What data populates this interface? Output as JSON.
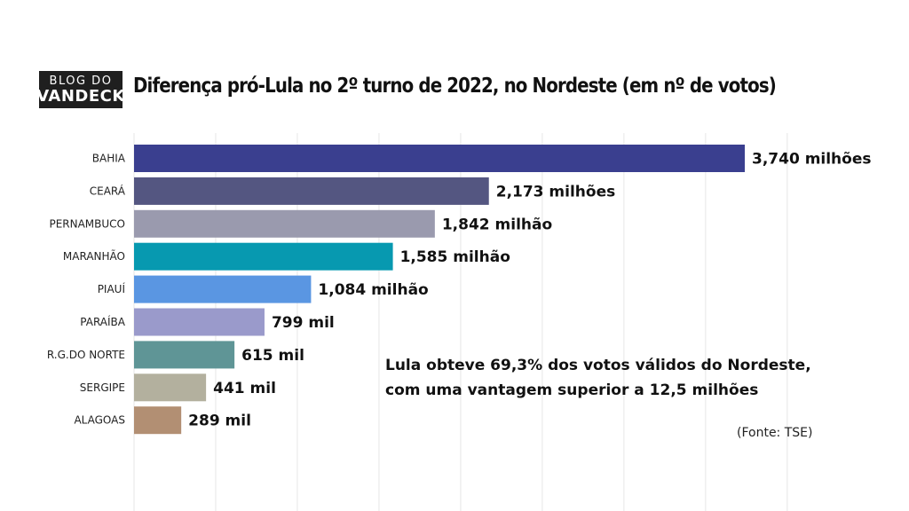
{
  "logo": {
    "line1": "BLOG DO",
    "line2": "VANDECK"
  },
  "chart_data": {
    "type": "bar",
    "orientation": "horizontal",
    "title": "Diferença pró-Lula no 2º turno de 2022, no Nordeste (em nº de votos)",
    "categories": [
      "BAHIA",
      "CEARÁ",
      "PERNAMBUCO",
      "MARANHÃO",
      "PIAUÍ",
      "PARAÍBA",
      "R.G.DO NORTE",
      "SERGIPE",
      "ALAGOAS"
    ],
    "values": [
      3740000,
      2173000,
      1842000,
      1585000,
      1084000,
      799000,
      615000,
      441000,
      289000
    ],
    "data_labels": [
      "3,740 milhões",
      "2,173 milhões",
      "1,842 milhão",
      "1,585 milhão",
      "1,084 milhão",
      "799 mil",
      "615 mil",
      "441 mil",
      "289 mil"
    ],
    "colors": [
      "#3a3f8f",
      "#545681",
      "#9a9aae",
      "#0799b0",
      "#5a96e2",
      "#9a9acb",
      "#5f9596",
      "#b3b09e",
      "#b28f73"
    ],
    "xlim": [
      0,
      4000000
    ],
    "grid": true,
    "legend": "none"
  },
  "annotation": {
    "line1": "Lula obteve 69,3% dos votos válidos do Nordeste,",
    "line2": "com uma vantagem superior a 12,5 milhões"
  },
  "source": "(Fonte: TSE)"
}
